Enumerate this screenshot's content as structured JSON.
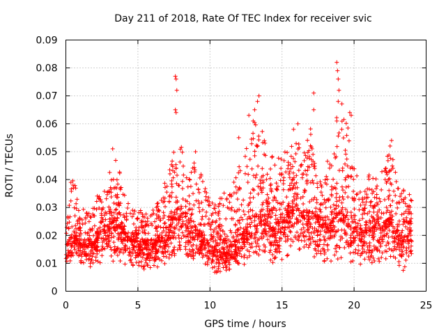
{
  "chart_data": {
    "type": "scatter",
    "title": "Day 211 of 2018, Rate Of TEC Index for receiver svic",
    "xlabel": "GPS time / hours",
    "ylabel": "ROTI / TECUs",
    "xlim": [
      0,
      25
    ],
    "ylim": [
      0,
      0.09
    ],
    "xticks": [
      "0",
      "5",
      "10",
      "15",
      "20",
      "25"
    ],
    "yticks": [
      "0",
      "0.01",
      "0.02",
      "0.03",
      "0.04",
      "0.05",
      "0.06",
      "0.07",
      "0.08",
      "0.09"
    ],
    "grid": true,
    "marker": "+",
    "color": "#ff0000",
    "series": [
      {
        "name": "svic",
        "envelope_hours": [
          0,
          0.5,
          1,
          1.5,
          2,
          2.5,
          3,
          3.5,
          4,
          4.5,
          5,
          5.5,
          6,
          6.5,
          7,
          7.5,
          8,
          8.5,
          9,
          9.5,
          10,
          10.5,
          11,
          11.5,
          12,
          12.5,
          13,
          13.5,
          14,
          14.5,
          15,
          15.5,
          16,
          16.5,
          17,
          17.5,
          18,
          18.5,
          19,
          19.5,
          20,
          20.5,
          21,
          21.5,
          22,
          22.5,
          23,
          23.5,
          24
        ],
        "median_roti": [
          0.018,
          0.02,
          0.017,
          0.016,
          0.018,
          0.021,
          0.024,
          0.025,
          0.022,
          0.018,
          0.017,
          0.016,
          0.017,
          0.018,
          0.021,
          0.027,
          0.026,
          0.024,
          0.022,
          0.019,
          0.016,
          0.015,
          0.015,
          0.017,
          0.019,
          0.022,
          0.026,
          0.027,
          0.024,
          0.021,
          0.024,
          0.028,
          0.03,
          0.027,
          0.026,
          0.025,
          0.024,
          0.026,
          0.028,
          0.027,
          0.023,
          0.021,
          0.022,
          0.023,
          0.024,
          0.026,
          0.021,
          0.018,
          0.022
        ],
        "upper_roti": [
          0.033,
          0.04,
          0.032,
          0.028,
          0.033,
          0.036,
          0.042,
          0.05,
          0.038,
          0.032,
          0.03,
          0.028,
          0.03,
          0.033,
          0.043,
          0.05,
          0.054,
          0.044,
          0.048,
          0.04,
          0.032,
          0.033,
          0.038,
          0.036,
          0.046,
          0.052,
          0.062,
          0.066,
          0.051,
          0.047,
          0.049,
          0.053,
          0.057,
          0.049,
          0.06,
          0.05,
          0.045,
          0.052,
          0.07,
          0.062,
          0.046,
          0.041,
          0.043,
          0.042,
          0.044,
          0.054,
          0.042,
          0.036,
          0.034
        ],
        "lower_roti": [
          0.008,
          0.009,
          0.008,
          0.007,
          0.008,
          0.009,
          0.01,
          0.011,
          0.009,
          0.008,
          0.007,
          0.007,
          0.008,
          0.008,
          0.009,
          0.01,
          0.01,
          0.009,
          0.009,
          0.008,
          0.007,
          0.006,
          0.006,
          0.007,
          0.008,
          0.008,
          0.009,
          0.01,
          0.009,
          0.008,
          0.009,
          0.011,
          0.012,
          0.01,
          0.01,
          0.009,
          0.009,
          0.01,
          0.01,
          0.01,
          0.009,
          0.008,
          0.009,
          0.009,
          0.009,
          0.009,
          0.008,
          0.007,
          0.008
        ],
        "points_per_hour": 120,
        "outliers": [
          {
            "x": 7.6,
            "y": 0.077
          },
          {
            "x": 7.65,
            "y": 0.076
          },
          {
            "x": 7.7,
            "y": 0.072
          },
          {
            "x": 7.6,
            "y": 0.065
          },
          {
            "x": 7.65,
            "y": 0.064
          },
          {
            "x": 3.25,
            "y": 0.051
          },
          {
            "x": 13.1,
            "y": 0.065
          },
          {
            "x": 13.3,
            "y": 0.068
          },
          {
            "x": 13.4,
            "y": 0.07
          },
          {
            "x": 12.7,
            "y": 0.063
          },
          {
            "x": 13.0,
            "y": 0.061
          },
          {
            "x": 15.8,
            "y": 0.058
          },
          {
            "x": 16.1,
            "y": 0.06
          },
          {
            "x": 17.2,
            "y": 0.071
          },
          {
            "x": 17.2,
            "y": 0.065
          },
          {
            "x": 18.8,
            "y": 0.082
          },
          {
            "x": 18.85,
            "y": 0.079
          },
          {
            "x": 18.9,
            "y": 0.076
          },
          {
            "x": 18.95,
            "y": 0.072
          },
          {
            "x": 18.9,
            "y": 0.068
          },
          {
            "x": 18.8,
            "y": 0.061
          },
          {
            "x": 19.7,
            "y": 0.064
          },
          {
            "x": 19.8,
            "y": 0.063
          },
          {
            "x": 22.6,
            "y": 0.054
          },
          {
            "x": 22.5,
            "y": 0.052
          },
          {
            "x": 0.35,
            "y": 0.039
          },
          {
            "x": 0.5,
            "y": 0.038
          },
          {
            "x": 9.0,
            "y": 0.05
          },
          {
            "x": 12.0,
            "y": 0.055
          },
          {
            "x": 14.3,
            "y": 0.048
          }
        ]
      }
    ]
  }
}
